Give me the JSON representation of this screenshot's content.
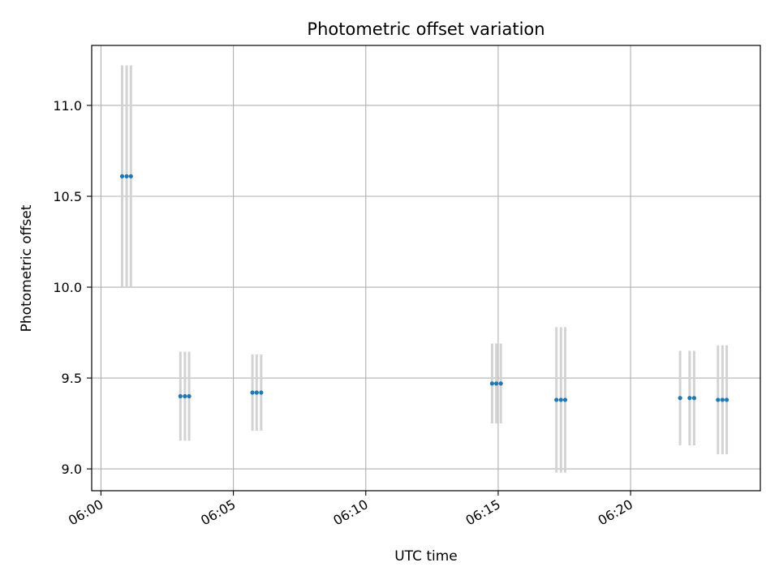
{
  "chart_data": {
    "type": "scatter",
    "title": "Photometric offset variation",
    "xlabel": "UTC time",
    "ylabel": "Photometric offset",
    "grid": true,
    "legend": "none",
    "x_unit": "minutes after 06:00 UTC",
    "xlim": [
      -0.35,
      24.9
    ],
    "ylim": [
      8.88,
      11.33
    ],
    "x_ticks": [
      0,
      5,
      10,
      15,
      20
    ],
    "x_tick_labels": [
      "06:00",
      "06:05",
      "06:10",
      "06:15",
      "06:20"
    ],
    "y_ticks": [
      9.0,
      9.5,
      10.0,
      10.5,
      11.0
    ],
    "y_tick_labels": [
      "9.0",
      "9.5",
      "10.0",
      "10.5",
      "11.0"
    ],
    "colors": {
      "point": "#1f77b4",
      "errorbar": "#d3d3d3",
      "grid": "#b0b0b0"
    },
    "series": [
      {
        "time": [
          "06:00:48",
          "06:00:58",
          "06:01:08",
          "06:03:00",
          "06:03:10",
          "06:03:20",
          "06:05:43",
          "06:05:53",
          "06:06:03",
          "06:14:46",
          "06:14:56",
          "06:15:06",
          "06:17:12",
          "06:17:22",
          "06:17:32",
          "06:21:52",
          "06:22:14",
          "06:22:24",
          "06:23:18",
          "06:23:28",
          "06:23:38"
        ],
        "x": [
          0.8,
          0.97,
          1.13,
          3.0,
          3.17,
          3.33,
          5.72,
          5.88,
          6.05,
          14.77,
          14.93,
          15.1,
          17.2,
          17.37,
          17.53,
          21.87,
          22.23,
          22.4,
          23.3,
          23.47,
          23.63
        ],
        "y": [
          10.61,
          10.61,
          10.61,
          9.4,
          9.4,
          9.4,
          9.42,
          9.42,
          9.42,
          9.47,
          9.47,
          9.47,
          9.38,
          9.38,
          9.38,
          9.39,
          9.39,
          9.39,
          9.38,
          9.38,
          9.38
        ],
        "yerr": [
          0.61,
          0.61,
          0.61,
          0.245,
          0.245,
          0.245,
          0.21,
          0.21,
          0.21,
          0.22,
          0.22,
          0.22,
          0.4,
          0.4,
          0.4,
          0.26,
          0.26,
          0.26,
          0.3,
          0.3,
          0.3
        ]
      }
    ]
  }
}
